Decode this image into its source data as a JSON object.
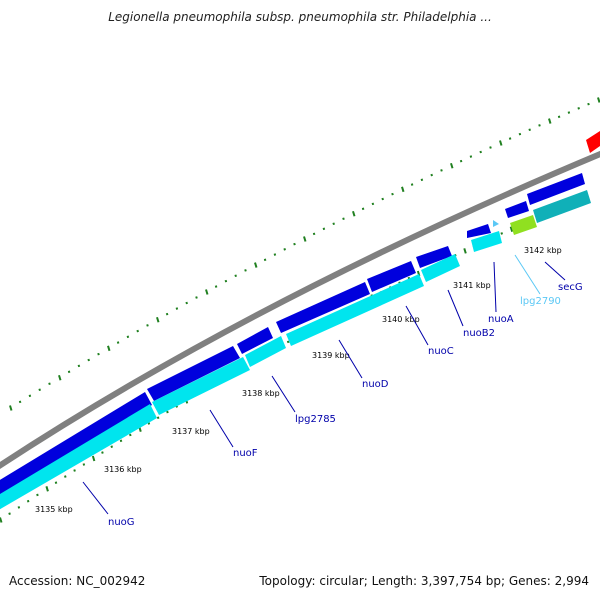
{
  "title": "Legionella pneumophila subsp. pneumophila str. Philadelphia ...",
  "footer": {
    "accession": "Accession: NC_002942",
    "summary": "Topology: circular; Length: 3,397,754 bp; Genes: 2,994"
  },
  "colors": {
    "backbone": "#808080",
    "cds_forward": "#0000dd",
    "cds_reverse": "#00e5ee",
    "gene_label": "#0000aa",
    "trna": "#5bc8f5",
    "rrna_or_other": "#90e020",
    "teal_feature": "#10b0b8",
    "red_feature": "#ff0000",
    "tick": "#208020"
  },
  "kbp_labels": [
    {
      "label": "3135 kbp",
      "value": 3135
    },
    {
      "label": "3136 kbp",
      "value": 3136
    },
    {
      "label": "3137 kbp",
      "value": 3137
    },
    {
      "label": "3138 kbp",
      "value": 3138
    },
    {
      "label": "3139 kbp",
      "value": 3139
    },
    {
      "label": "3140 kbp",
      "value": 3140
    },
    {
      "label": "3141 kbp",
      "value": 3141
    },
    {
      "label": "3142 kbp",
      "value": 3142
    }
  ],
  "genes": [
    {
      "name": "nuoG"
    },
    {
      "name": "nuoF"
    },
    {
      "name": "lpg2785"
    },
    {
      "name": "nuoD"
    },
    {
      "name": "nuoC"
    },
    {
      "name": "nuoB2"
    },
    {
      "name": "nuoA"
    },
    {
      "name": "lpg2790"
    },
    {
      "name": "secG"
    }
  ]
}
